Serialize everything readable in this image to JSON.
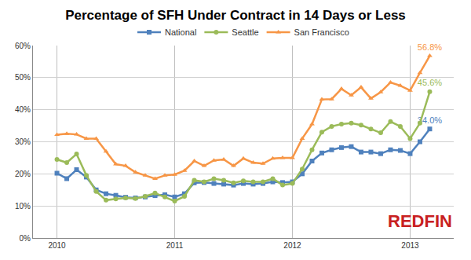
{
  "chart_data": {
    "type": "line",
    "title": "Percentage of SFH Under Contract in 14 Days or Less",
    "categories": [
      "2010",
      null,
      null,
      null,
      null,
      null,
      null,
      null,
      null,
      null,
      null,
      null,
      "2011",
      null,
      null,
      null,
      null,
      null,
      null,
      null,
      null,
      null,
      null,
      null,
      "2012",
      null,
      null,
      null,
      null,
      null,
      null,
      null,
      null,
      null,
      null,
      null,
      "2013",
      null,
      null
    ],
    "series": [
      {
        "name": "National",
        "color": "#4f81bd",
        "marker": "square",
        "values": [
          20.2,
          18.5,
          21.3,
          19.0,
          15.0,
          13.8,
          13.3,
          12.7,
          12.5,
          12.8,
          13.2,
          13.5,
          12.8,
          13.8,
          17.2,
          17.3,
          17.0,
          16.8,
          16.5,
          17.0,
          16.8,
          17.0,
          17.5,
          17.3,
          17.5,
          20.0,
          24.0,
          26.5,
          27.5,
          28.2,
          28.5,
          26.8,
          26.8,
          26.3,
          27.5,
          27.3,
          26.3,
          30.0,
          34.0
        ],
        "value_labels": [
          null,
          null,
          null,
          null,
          null,
          null,
          null,
          null,
          null,
          null,
          null,
          null,
          null,
          null,
          null,
          null,
          null,
          null,
          null,
          null,
          null,
          null,
          null,
          null,
          null,
          null,
          null,
          null,
          null,
          null,
          null,
          null,
          null,
          null,
          null,
          null,
          null,
          null,
          "34.0%"
        ]
      },
      {
        "name": "Seattle",
        "color": "#9bbb59",
        "marker": "circle",
        "values": [
          24.5,
          23.5,
          26.2,
          19.5,
          14.5,
          11.8,
          12.2,
          12.5,
          12.3,
          13.0,
          14.0,
          12.8,
          11.5,
          13.0,
          18.0,
          17.5,
          18.5,
          18.0,
          17.2,
          17.8,
          17.5,
          17.5,
          18.5,
          16.5,
          17.0,
          21.5,
          27.5,
          33.0,
          34.8,
          35.5,
          35.8,
          35.2,
          34.0,
          32.8,
          36.3,
          34.8,
          31.0,
          35.8,
          45.6
        ],
        "value_labels": [
          null,
          null,
          null,
          null,
          null,
          null,
          null,
          null,
          null,
          null,
          null,
          null,
          null,
          null,
          null,
          null,
          null,
          null,
          null,
          null,
          null,
          null,
          null,
          null,
          null,
          null,
          null,
          null,
          null,
          null,
          null,
          null,
          null,
          null,
          null,
          null,
          null,
          null,
          "45.6%"
        ]
      },
      {
        "name": "San Francisco",
        "color": "#f79646",
        "marker": "triangle-up",
        "values": [
          32.2,
          32.5,
          32.3,
          31.0,
          31.0,
          27.0,
          23.0,
          22.5,
          20.5,
          19.5,
          18.5,
          19.5,
          19.8,
          21.0,
          24.0,
          22.5,
          24.2,
          24.5,
          22.5,
          24.8,
          23.5,
          23.2,
          24.8,
          25.0,
          25.0,
          31.0,
          35.5,
          43.2,
          43.3,
          46.5,
          44.5,
          47.0,
          43.5,
          45.5,
          48.5,
          47.5,
          46.0,
          51.5,
          56.8
        ],
        "value_labels": [
          null,
          null,
          null,
          null,
          null,
          null,
          null,
          null,
          null,
          null,
          null,
          null,
          null,
          null,
          null,
          null,
          null,
          null,
          null,
          null,
          null,
          null,
          null,
          null,
          null,
          null,
          null,
          null,
          null,
          null,
          null,
          null,
          null,
          null,
          null,
          null,
          null,
          null,
          "56.8%"
        ]
      }
    ],
    "ylim": [
      0,
      60
    ],
    "yticks": [
      {
        "value": 0,
        "label": "0%"
      },
      {
        "value": 10,
        "label": "10%"
      },
      {
        "value": 20,
        "label": "20%"
      },
      {
        "value": 30,
        "label": "30%"
      },
      {
        "value": 40,
        "label": "40%"
      },
      {
        "value": 50,
        "label": "50%"
      },
      {
        "value": 60,
        "label": "60%"
      }
    ],
    "grid": true,
    "legend": "top",
    "data_labels": true,
    "annotations": [
      "REDFIN"
    ]
  }
}
